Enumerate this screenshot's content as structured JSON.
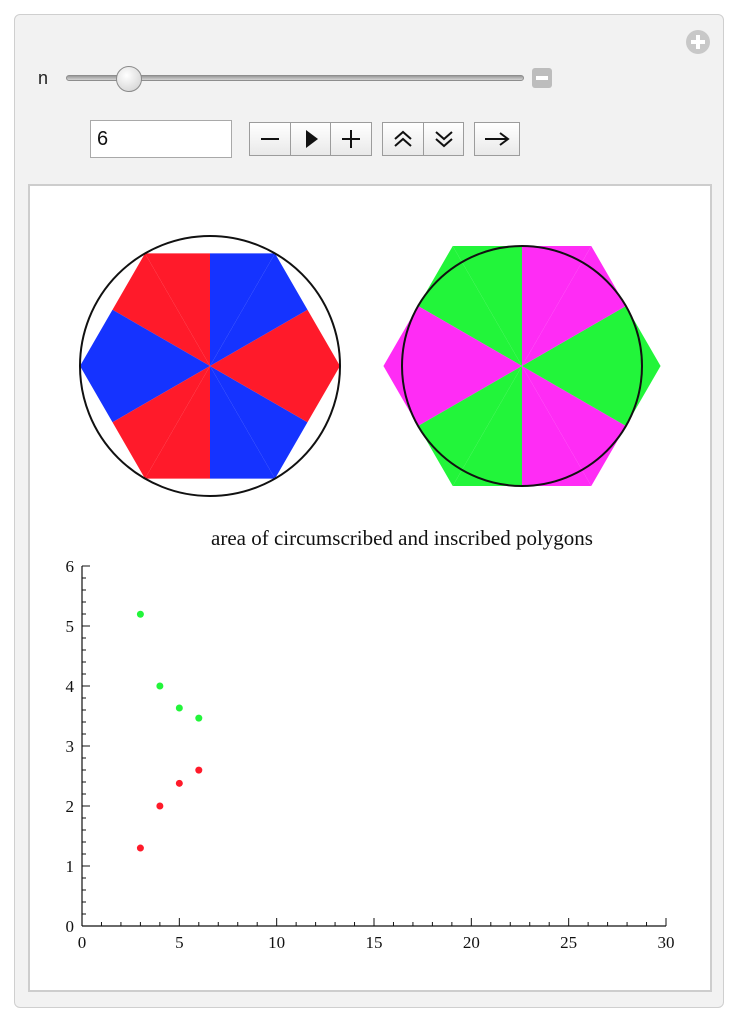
{
  "control": {
    "label": "n",
    "input_value": "6",
    "slider": {
      "min": 3,
      "max": 30,
      "value": 6
    }
  },
  "icons": {
    "add": "plus-circle-icon",
    "collapse": "minus-square-icon",
    "decrement": "minus-icon",
    "play": "play-icon",
    "increment": "plus-icon",
    "faster": "double-chevron-up-icon",
    "slower": "double-chevron-down-icon",
    "direction": "right-arrow-icon"
  },
  "colors": {
    "circumscribed_a": "#ff1a2a",
    "circumscribed_b": "#1533ff",
    "inscribed_a": "#22f53a",
    "inscribed_b": "#ff2cf5"
  },
  "chart_data": {
    "type": "scatter",
    "title": "area of circumscribed and inscribed polygons",
    "xlabel": "",
    "ylabel": "",
    "xlim": [
      0,
      30
    ],
    "ylim": [
      0,
      6
    ],
    "x_ticks": [
      "0",
      "5",
      "10",
      "15",
      "20",
      "25",
      "30"
    ],
    "y_ticks": [
      "0",
      "1",
      "2",
      "3",
      "4",
      "5",
      "6"
    ],
    "series": [
      {
        "color": "#22f53a",
        "x": [
          3,
          4,
          5,
          6
        ],
        "y": [
          5.196,
          4.0,
          3.633,
          3.464
        ]
      },
      {
        "color": "#ff1a2a",
        "x": [
          3,
          4,
          5,
          6
        ],
        "y": [
          1.299,
          2.0,
          2.378,
          2.598
        ]
      }
    ]
  }
}
